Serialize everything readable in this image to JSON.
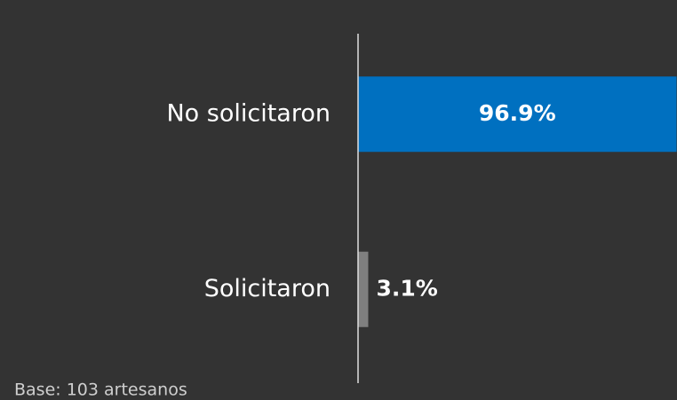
{
  "chart_data": {
    "type": "barh",
    "categories": [
      "No solicitaron",
      "Solicitaron"
    ],
    "values": [
      96.9,
      3.1
    ],
    "value_labels": [
      "96.9%",
      "3.1%"
    ],
    "colors": [
      "#0070c0",
      "#7f7f7f"
    ],
    "xlim": [
      0,
      100
    ],
    "note": "Base: 103 artesanos"
  }
}
